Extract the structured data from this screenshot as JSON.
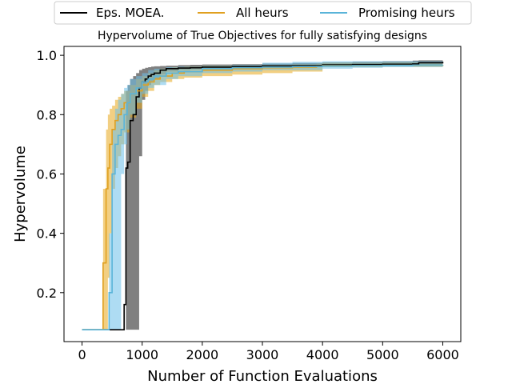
{
  "chart_data": {
    "type": "line",
    "title": "Hypervolume of True Objectives for fully satisfying designs",
    "xlabel": "Number of Function Evaluations",
    "ylabel": "Hypervolume",
    "xlim": [
      -300,
      6300
    ],
    "ylim": [
      0.035,
      1.03
    ],
    "xticks": [
      0,
      1000,
      2000,
      3000,
      4000,
      5000,
      6000
    ],
    "xtick_labels": [
      "0",
      "1000",
      "2000",
      "3000",
      "4000",
      "5000",
      "6000"
    ],
    "yticks": [
      0.2,
      0.4,
      0.6,
      0.8,
      1.0
    ],
    "ytick_labels": [
      "0.2",
      "0.4",
      "0.6",
      "0.8",
      "1.0"
    ],
    "legend_position": "top-outside",
    "grid": false,
    "series": [
      {
        "name": "Eps. MOEA.",
        "color": "#000000",
        "band_color": "#555555",
        "band_opacity": 0.75,
        "x": [
          0,
          300,
          500,
          650,
          700,
          730,
          760,
          800,
          850,
          900,
          950,
          1000,
          1050,
          1100,
          1150,
          1200,
          1300,
          1400,
          1600,
          1800,
          2000,
          2500,
          3000,
          3500,
          4000,
          4500,
          5000,
          5500,
          5600,
          6000
        ],
        "mean": [
          0.075,
          0.075,
          0.075,
          0.075,
          0.16,
          0.62,
          0.64,
          0.78,
          0.8,
          0.86,
          0.89,
          0.91,
          0.92,
          0.93,
          0.935,
          0.94,
          0.95,
          0.955,
          0.957,
          0.958,
          0.96,
          0.962,
          0.964,
          0.965,
          0.968,
          0.969,
          0.97,
          0.971,
          0.975,
          0.978
        ],
        "lower": [
          0.075,
          0.075,
          0.075,
          0.075,
          0.075,
          0.075,
          0.075,
          0.075,
          0.075,
          0.075,
          0.66,
          0.85,
          0.88,
          0.9,
          0.91,
          0.92,
          0.935,
          0.945,
          0.95,
          0.952,
          0.955,
          0.957,
          0.958,
          0.96,
          0.962,
          0.963,
          0.964,
          0.965,
          0.967,
          0.968
        ],
        "upper": [
          0.075,
          0.075,
          0.075,
          0.075,
          0.075,
          0.88,
          0.9,
          0.92,
          0.93,
          0.94,
          0.95,
          0.955,
          0.958,
          0.96,
          0.962,
          0.963,
          0.964,
          0.965,
          0.967,
          0.968,
          0.969,
          0.97,
          0.972,
          0.974,
          0.976,
          0.978,
          0.98,
          0.982,
          0.983,
          0.985
        ]
      },
      {
        "name": "All heurs",
        "color": "#e0a020",
        "band_color": "#e8a81c",
        "band_opacity": 0.55,
        "x": [
          0,
          300,
          350,
          400,
          430,
          460,
          500,
          550,
          600,
          650,
          700,
          800,
          900,
          1000,
          1100,
          1200,
          1300,
          1500,
          1700,
          2000,
          2500,
          3000,
          3500,
          3900,
          4000,
          5000,
          6000
        ],
        "mean": [
          0.075,
          0.075,
          0.3,
          0.55,
          0.62,
          0.7,
          0.75,
          0.78,
          0.8,
          0.82,
          0.84,
          0.87,
          0.88,
          0.9,
          0.91,
          0.92,
          0.93,
          0.94,
          0.945,
          0.95,
          0.955,
          0.958,
          0.96,
          0.962,
          0.965,
          0.966,
          0.967
        ],
        "lower": [
          0.075,
          0.075,
          0.075,
          0.075,
          0.25,
          0.4,
          0.55,
          0.62,
          0.66,
          0.7,
          0.74,
          0.79,
          0.82,
          0.86,
          0.88,
          0.9,
          0.91,
          0.92,
          0.925,
          0.93,
          0.935,
          0.94,
          0.945,
          0.945,
          0.96,
          0.962,
          0.962
        ],
        "upper": [
          0.075,
          0.075,
          0.55,
          0.75,
          0.8,
          0.82,
          0.83,
          0.85,
          0.86,
          0.87,
          0.88,
          0.9,
          0.92,
          0.93,
          0.94,
          0.95,
          0.955,
          0.96,
          0.962,
          0.965,
          0.966,
          0.968,
          0.97,
          0.972,
          0.975,
          0.976,
          0.978
        ]
      },
      {
        "name": "Promising heurs",
        "color": "#5ab4d9",
        "band_color": "#6cc0ea",
        "band_opacity": 0.55,
        "x": [
          0,
          400,
          450,
          500,
          550,
          600,
          650,
          700,
          750,
          800,
          900,
          1000,
          1100,
          1200,
          1400,
          1600,
          2000,
          2500,
          3000,
          3500,
          4000,
          4500,
          5000,
          5500,
          6000
        ],
        "mean": [
          0.075,
          0.075,
          0.2,
          0.6,
          0.7,
          0.73,
          0.75,
          0.8,
          0.84,
          0.87,
          0.89,
          0.91,
          0.92,
          0.93,
          0.94,
          0.945,
          0.955,
          0.958,
          0.96,
          0.962,
          0.964,
          0.965,
          0.966,
          0.967,
          0.968
        ],
        "lower": [
          0.075,
          0.075,
          0.075,
          0.075,
          0.075,
          0.075,
          0.6,
          0.7,
          0.75,
          0.8,
          0.84,
          0.87,
          0.89,
          0.9,
          0.92,
          0.93,
          0.94,
          0.945,
          0.95,
          0.95,
          0.955,
          0.958,
          0.96,
          0.96,
          0.962
        ],
        "upper": [
          0.075,
          0.075,
          0.4,
          0.75,
          0.82,
          0.85,
          0.87,
          0.89,
          0.9,
          0.92,
          0.93,
          0.94,
          0.95,
          0.955,
          0.96,
          0.962,
          0.965,
          0.968,
          0.975,
          0.978,
          0.98,
          0.98,
          0.98,
          0.98,
          0.98
        ]
      }
    ]
  }
}
